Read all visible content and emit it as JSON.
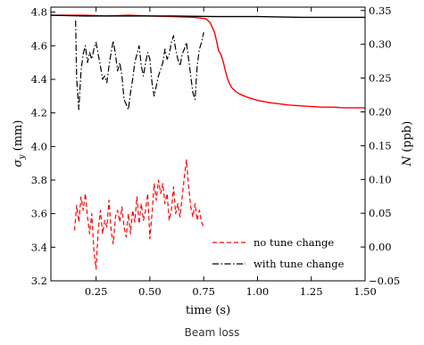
{
  "caption": "Beam loss",
  "chart_data": {
    "type": "line",
    "xlabel": "time (s)",
    "ylabel_left": "σ_y (mm)",
    "ylabel_right": "N (ppb)",
    "xlim": [
      0.04,
      1.5
    ],
    "ylim_left": [
      3.2,
      4.83
    ],
    "ylim_right": [
      -0.05,
      0.355
    ],
    "x_ticks": [
      0.25,
      0.5,
      0.75,
      1.0,
      1.25,
      1.5
    ],
    "x_tick_labels": [
      "0.25",
      "0.50",
      "0.75",
      "1.00",
      "1.25",
      "1.50"
    ],
    "y_left_ticks": [
      3.2,
      3.4,
      3.6,
      3.8,
      4.0,
      4.2,
      4.4,
      4.6,
      4.8
    ],
    "y_left_tick_labels": [
      "3.2",
      "3.4",
      "3.6",
      "3.8",
      "4.0",
      "4.2",
      "4.4",
      "4.6",
      "4.8"
    ],
    "y_right_ticks": [
      -0.05,
      0.0,
      0.05,
      0.1,
      0.15,
      0.2,
      0.25,
      0.3,
      0.35
    ],
    "y_right_tick_labels": [
      "−0.05",
      "0.00",
      "0.05",
      "0.10",
      "0.15",
      "0.20",
      "0.25",
      "0.30",
      "0.35"
    ],
    "grid": false,
    "legend_position": "lower-right",
    "legend": [
      {
        "label": "no tune change",
        "color": "#ff0000",
        "dash": "dashed"
      },
      {
        "label": "with tune change",
        "color": "#000000",
        "dash": "dashdot"
      }
    ],
    "series": [
      {
        "axis": "left",
        "color": "#ff0000",
        "dash": "dashed",
        "x": [
          0.15,
          0.16,
          0.17,
          0.18,
          0.19,
          0.2,
          0.21,
          0.22,
          0.23,
          0.24,
          0.25,
          0.26,
          0.27,
          0.28,
          0.29,
          0.3,
          0.31,
          0.32,
          0.33,
          0.34,
          0.35,
          0.36,
          0.37,
          0.38,
          0.39,
          0.4,
          0.41,
          0.42,
          0.43,
          0.44,
          0.45,
          0.46,
          0.47,
          0.48,
          0.49,
          0.5,
          0.51,
          0.52,
          0.53,
          0.54,
          0.55,
          0.56,
          0.57,
          0.58,
          0.59,
          0.6,
          0.61,
          0.62,
          0.63,
          0.64,
          0.65,
          0.66,
          0.67,
          0.68,
          0.69,
          0.7,
          0.71,
          0.72,
          0.73,
          0.74,
          0.75
        ],
        "y": [
          3.5,
          3.65,
          3.55,
          3.7,
          3.62,
          3.72,
          3.58,
          3.48,
          3.6,
          3.38,
          3.27,
          3.5,
          3.62,
          3.48,
          3.56,
          3.52,
          3.68,
          3.5,
          3.42,
          3.58,
          3.62,
          3.55,
          3.64,
          3.52,
          3.46,
          3.6,
          3.48,
          3.62,
          3.55,
          3.7,
          3.54,
          3.66,
          3.56,
          3.62,
          3.72,
          3.45,
          3.6,
          3.78,
          3.68,
          3.8,
          3.72,
          3.78,
          3.66,
          3.72,
          3.56,
          3.62,
          3.76,
          3.6,
          3.66,
          3.58,
          3.7,
          3.82,
          3.92,
          3.76,
          3.64,
          3.58,
          3.66,
          3.56,
          3.62,
          3.55,
          3.52
        ]
      },
      {
        "axis": "left",
        "color": "#000000",
        "dash": "dashdot",
        "x": [
          0.155,
          0.16,
          0.17,
          0.18,
          0.19,
          0.2,
          0.21,
          0.22,
          0.23,
          0.24,
          0.25,
          0.26,
          0.27,
          0.28,
          0.29,
          0.3,
          0.31,
          0.32,
          0.33,
          0.34,
          0.35,
          0.36,
          0.37,
          0.38,
          0.39,
          0.4,
          0.41,
          0.42,
          0.43,
          0.44,
          0.45,
          0.46,
          0.47,
          0.48,
          0.49,
          0.5,
          0.51,
          0.52,
          0.53,
          0.54,
          0.55,
          0.56,
          0.57,
          0.58,
          0.59,
          0.6,
          0.61,
          0.62,
          0.63,
          0.64,
          0.65,
          0.66,
          0.67,
          0.68,
          0.69,
          0.7,
          0.71,
          0.72,
          0.73,
          0.74,
          0.75
        ],
        "y": [
          4.75,
          4.4,
          4.22,
          4.45,
          4.55,
          4.6,
          4.5,
          4.56,
          4.52,
          4.58,
          4.62,
          4.55,
          4.48,
          4.4,
          4.42,
          4.38,
          4.48,
          4.56,
          4.63,
          4.55,
          4.45,
          4.5,
          4.42,
          4.28,
          4.25,
          4.22,
          4.32,
          4.4,
          4.5,
          4.55,
          4.6,
          4.48,
          4.42,
          4.5,
          4.56,
          4.52,
          4.38,
          4.3,
          4.36,
          4.42,
          4.46,
          4.5,
          4.58,
          4.52,
          4.55,
          4.62,
          4.66,
          4.58,
          4.52,
          4.48,
          4.55,
          4.58,
          4.62,
          4.52,
          4.42,
          4.32,
          4.28,
          4.48,
          4.58,
          4.62,
          4.68
        ]
      },
      {
        "axis": "right",
        "color": "#ff0000",
        "dash": "solid",
        "x": [
          0.04,
          0.1,
          0.2,
          0.3,
          0.4,
          0.5,
          0.6,
          0.7,
          0.76,
          0.78,
          0.8,
          0.81,
          0.82,
          0.83,
          0.84,
          0.85,
          0.86,
          0.87,
          0.88,
          0.9,
          0.92,
          0.95,
          0.98,
          1.0,
          1.05,
          1.1,
          1.15,
          1.2,
          1.25,
          1.3,
          1.35,
          1.4,
          1.45,
          1.5
        ],
        "y": [
          0.343,
          0.343,
          0.343,
          0.342,
          0.343,
          0.342,
          0.341,
          0.34,
          0.338,
          0.332,
          0.318,
          0.305,
          0.29,
          0.285,
          0.275,
          0.262,
          0.25,
          0.242,
          0.236,
          0.23,
          0.226,
          0.222,
          0.219,
          0.217,
          0.214,
          0.212,
          0.21,
          0.209,
          0.208,
          0.207,
          0.207,
          0.206,
          0.206,
          0.206
        ]
      },
      {
        "axis": "right",
        "color": "#000000",
        "dash": "solid",
        "x": [
          0.04,
          0.2,
          0.4,
          0.6,
          0.8,
          1.0,
          1.2,
          1.4,
          1.5
        ],
        "y": [
          0.343,
          0.342,
          0.342,
          0.342,
          0.341,
          0.341,
          0.34,
          0.34,
          0.34
        ]
      }
    ]
  }
}
